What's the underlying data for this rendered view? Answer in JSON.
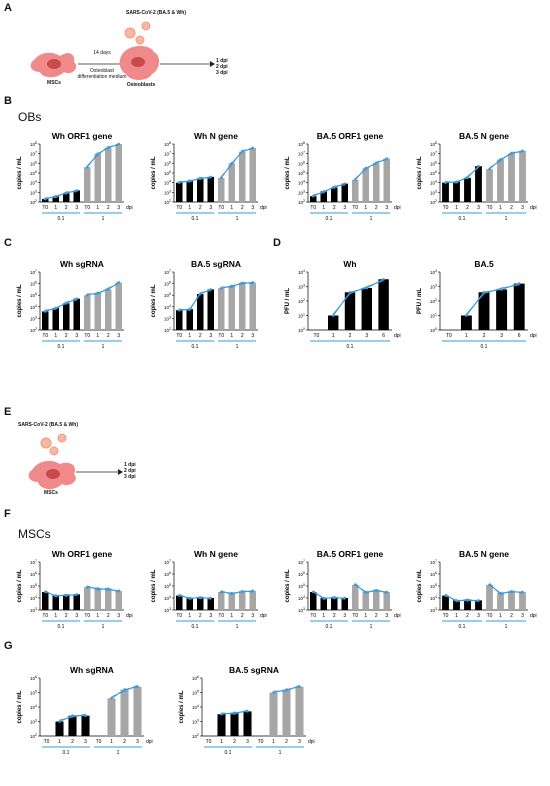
{
  "panels": {
    "A": "A",
    "B": "B",
    "C": "C",
    "D": "D",
    "E": "E",
    "F": "F",
    "G": "G"
  },
  "sections": {
    "obs": "OBs",
    "mscs": "MSCs"
  },
  "schematic_top": {
    "virus_label": "SARS-CoV-2 (BA.5 & Wh)",
    "days": "14 days",
    "medium": "Osteoblast differentiation medium",
    "cell_left": "MSCs",
    "cell_right": "Osteoblasts",
    "dpi": [
      "1 dpi",
      "2 dpi",
      "3 dpi"
    ]
  },
  "schematic_bottom": {
    "virus_label": "SARS-CoV-2 (BA.5 & Wh)",
    "cell": "MSCs",
    "dpi": [
      "1 dpi",
      "2 dpi",
      "3 dpi"
    ]
  },
  "colors": {
    "black_bar": "#000000",
    "gray_bar": "#a6a6a6",
    "line": "#3a9ad9",
    "moi_line": "#3a9ad9"
  },
  "chart_data": [
    {
      "id": "B1",
      "type": "bar",
      "title": "Wh ORF1 gene",
      "ylabel": "copies / mL",
      "yexp": [
        2,
        8
      ],
      "categories": [
        "T0",
        "1",
        "2",
        "3",
        "T0",
        "1",
        "2",
        "3"
      ],
      "groups": [
        "0.1",
        "1"
      ],
      "unit": "dpi",
      "log_values": [
        2.3,
        2.6,
        2.9,
        3.2,
        5.6,
        7.0,
        7.6,
        8.0
      ]
    },
    {
      "id": "B2",
      "type": "bar",
      "title": "Wh N gene",
      "ylabel": "copies / mL",
      "yexp": [
        2,
        8
      ],
      "categories": [
        "T0",
        "1",
        "2",
        "3",
        "T0",
        "1",
        "2",
        "3"
      ],
      "groups": [
        "0.1",
        "1"
      ],
      "unit": "dpi",
      "log_values": [
        4.0,
        4.2,
        4.4,
        4.6,
        4.5,
        6.0,
        7.2,
        7.6
      ]
    },
    {
      "id": "B3",
      "type": "bar",
      "title": "BA.5 ORF1 gene",
      "ylabel": "copies / mL",
      "yexp": [
        2,
        8
      ],
      "categories": [
        "T0",
        "1",
        "2",
        "3",
        "T0",
        "1",
        "2",
        "3"
      ],
      "groups": [
        "0.1",
        "1"
      ],
      "unit": "dpi",
      "log_values": [
        2.6,
        3.1,
        3.5,
        3.9,
        4.3,
        5.5,
        6.0,
        6.5
      ]
    },
    {
      "id": "B4",
      "type": "bar",
      "title": "BA.5 N gene",
      "ylabel": "copies / mL",
      "yexp": [
        2,
        8
      ],
      "categories": [
        "T0",
        "1",
        "2",
        "3",
        "T0",
        "1",
        "2",
        "3"
      ],
      "groups": [
        "0.1",
        "1"
      ],
      "unit": "dpi",
      "log_values": [
        4.0,
        4.1,
        4.5,
        5.7,
        5.4,
        6.4,
        7.0,
        7.3
      ]
    },
    {
      "id": "C1",
      "type": "bar",
      "title": "Wh sgRNA",
      "ylabel": "copies / mL",
      "yexp": [
        2,
        7
      ],
      "categories": [
        "T0",
        "1",
        "2",
        "3",
        "T0",
        "1",
        "2",
        "3"
      ],
      "groups": [
        "0.1",
        "1"
      ],
      "unit": "",
      "log_values": [
        3.6,
        3.9,
        4.3,
        4.7,
        5.0,
        5.2,
        5.5,
        6.1
      ]
    },
    {
      "id": "C2",
      "type": "bar",
      "title": "BA.5 sgRNA",
      "ylabel": "copies / mL",
      "yexp": [
        2,
        7
      ],
      "categories": [
        "T0",
        "1",
        "2",
        "3",
        "T0",
        "1",
        "2",
        "3"
      ],
      "groups": [
        "0.1",
        "1"
      ],
      "unit": "",
      "log_values": [
        3.7,
        3.8,
        5.1,
        5.5,
        5.6,
        5.8,
        6.0,
        6.1
      ]
    },
    {
      "id": "D1",
      "type": "bar",
      "title": "Wh",
      "ylabel": "PFU / mL",
      "yexp": [
        0,
        4
      ],
      "categories": [
        "T0",
        "1",
        "2",
        "3",
        "6"
      ],
      "groups": [
        "0.1"
      ],
      "unit": "dpi",
      "log_values": [
        null,
        1.0,
        2.6,
        2.9,
        3.5
      ]
    },
    {
      "id": "D2",
      "type": "bar",
      "title": "BA.5",
      "ylabel": "PFU / mL",
      "yexp": [
        0,
        4
      ],
      "categories": [
        "T0",
        "1",
        "2",
        "3",
        "6"
      ],
      "groups": [
        "0.1"
      ],
      "unit": "dpi",
      "log_values": [
        null,
        1.0,
        2.6,
        2.8,
        3.2
      ]
    },
    {
      "id": "F1",
      "type": "bar",
      "title": "Wh ORF1 gene",
      "ylabel": "copies / mL",
      "yexp": [
        3,
        7
      ],
      "categories": [
        "T0",
        "1",
        "2",
        "3",
        "T0",
        "1",
        "2",
        "3"
      ],
      "groups": [
        "0.1",
        "1"
      ],
      "unit": "dpi",
      "log_values": [
        4.5,
        4.2,
        4.2,
        4.3,
        4.9,
        4.8,
        4.7,
        4.6
      ]
    },
    {
      "id": "F2",
      "type": "bar",
      "title": "Wh N gene",
      "ylabel": "copies / mL",
      "yexp": [
        3,
        7
      ],
      "categories": [
        "T0",
        "1",
        "2",
        "3",
        "T0",
        "1",
        "2",
        "3"
      ],
      "groups": [
        "0.1",
        "1"
      ],
      "unit": "dpi",
      "log_values": [
        4.2,
        4.0,
        4.0,
        4.0,
        4.5,
        4.4,
        4.5,
        4.6
      ]
    },
    {
      "id": "F3",
      "type": "bar",
      "title": "BA.5 ORF1 gene",
      "ylabel": "copies / mL",
      "yexp": [
        3,
        7
      ],
      "categories": [
        "T0",
        "1",
        "2",
        "3",
        "T0",
        "1",
        "2",
        "3"
      ],
      "groups": [
        "0.1",
        "1"
      ],
      "unit": "dpi",
      "log_values": [
        4.5,
        4.0,
        4.0,
        4.0,
        5.1,
        4.5,
        4.6,
        4.5
      ]
    },
    {
      "id": "F4",
      "type": "bar",
      "title": "BA.5 N gene",
      "ylabel": "copies / mL",
      "yexp": [
        3,
        7
      ],
      "categories": [
        "T0",
        "1",
        "2",
        "3",
        "T0",
        "1",
        "2",
        "3"
      ],
      "groups": [
        "0.1",
        "1"
      ],
      "unit": "dpi",
      "log_values": [
        4.2,
        3.8,
        3.8,
        3.8,
        5.1,
        4.4,
        4.5,
        4.5
      ]
    },
    {
      "id": "G1",
      "type": "bar",
      "title": "Wh sgRNA",
      "ylabel": "copies / mL",
      "yexp": [
        2,
        6
      ],
      "categories": [
        "T0",
        "1",
        "2",
        "3",
        "T0",
        "1",
        "2",
        "3"
      ],
      "groups": [
        "0.1",
        "1"
      ],
      "unit": "dpi",
      "log_values": [
        null,
        3.0,
        3.4,
        3.4,
        null,
        4.6,
        5.2,
        5.4
      ]
    },
    {
      "id": "G2",
      "type": "bar",
      "title": "BA.5 sgRNA",
      "ylabel": "copies / mL",
      "yexp": [
        2,
        6
      ],
      "categories": [
        "T0",
        "1",
        "2",
        "3",
        "T0",
        "1",
        "2",
        "3"
      ],
      "groups": [
        "0.1",
        "1"
      ],
      "unit": "dpi",
      "log_values": [
        null,
        3.5,
        3.6,
        3.7,
        null,
        5.0,
        5.2,
        5.4
      ]
    }
  ]
}
